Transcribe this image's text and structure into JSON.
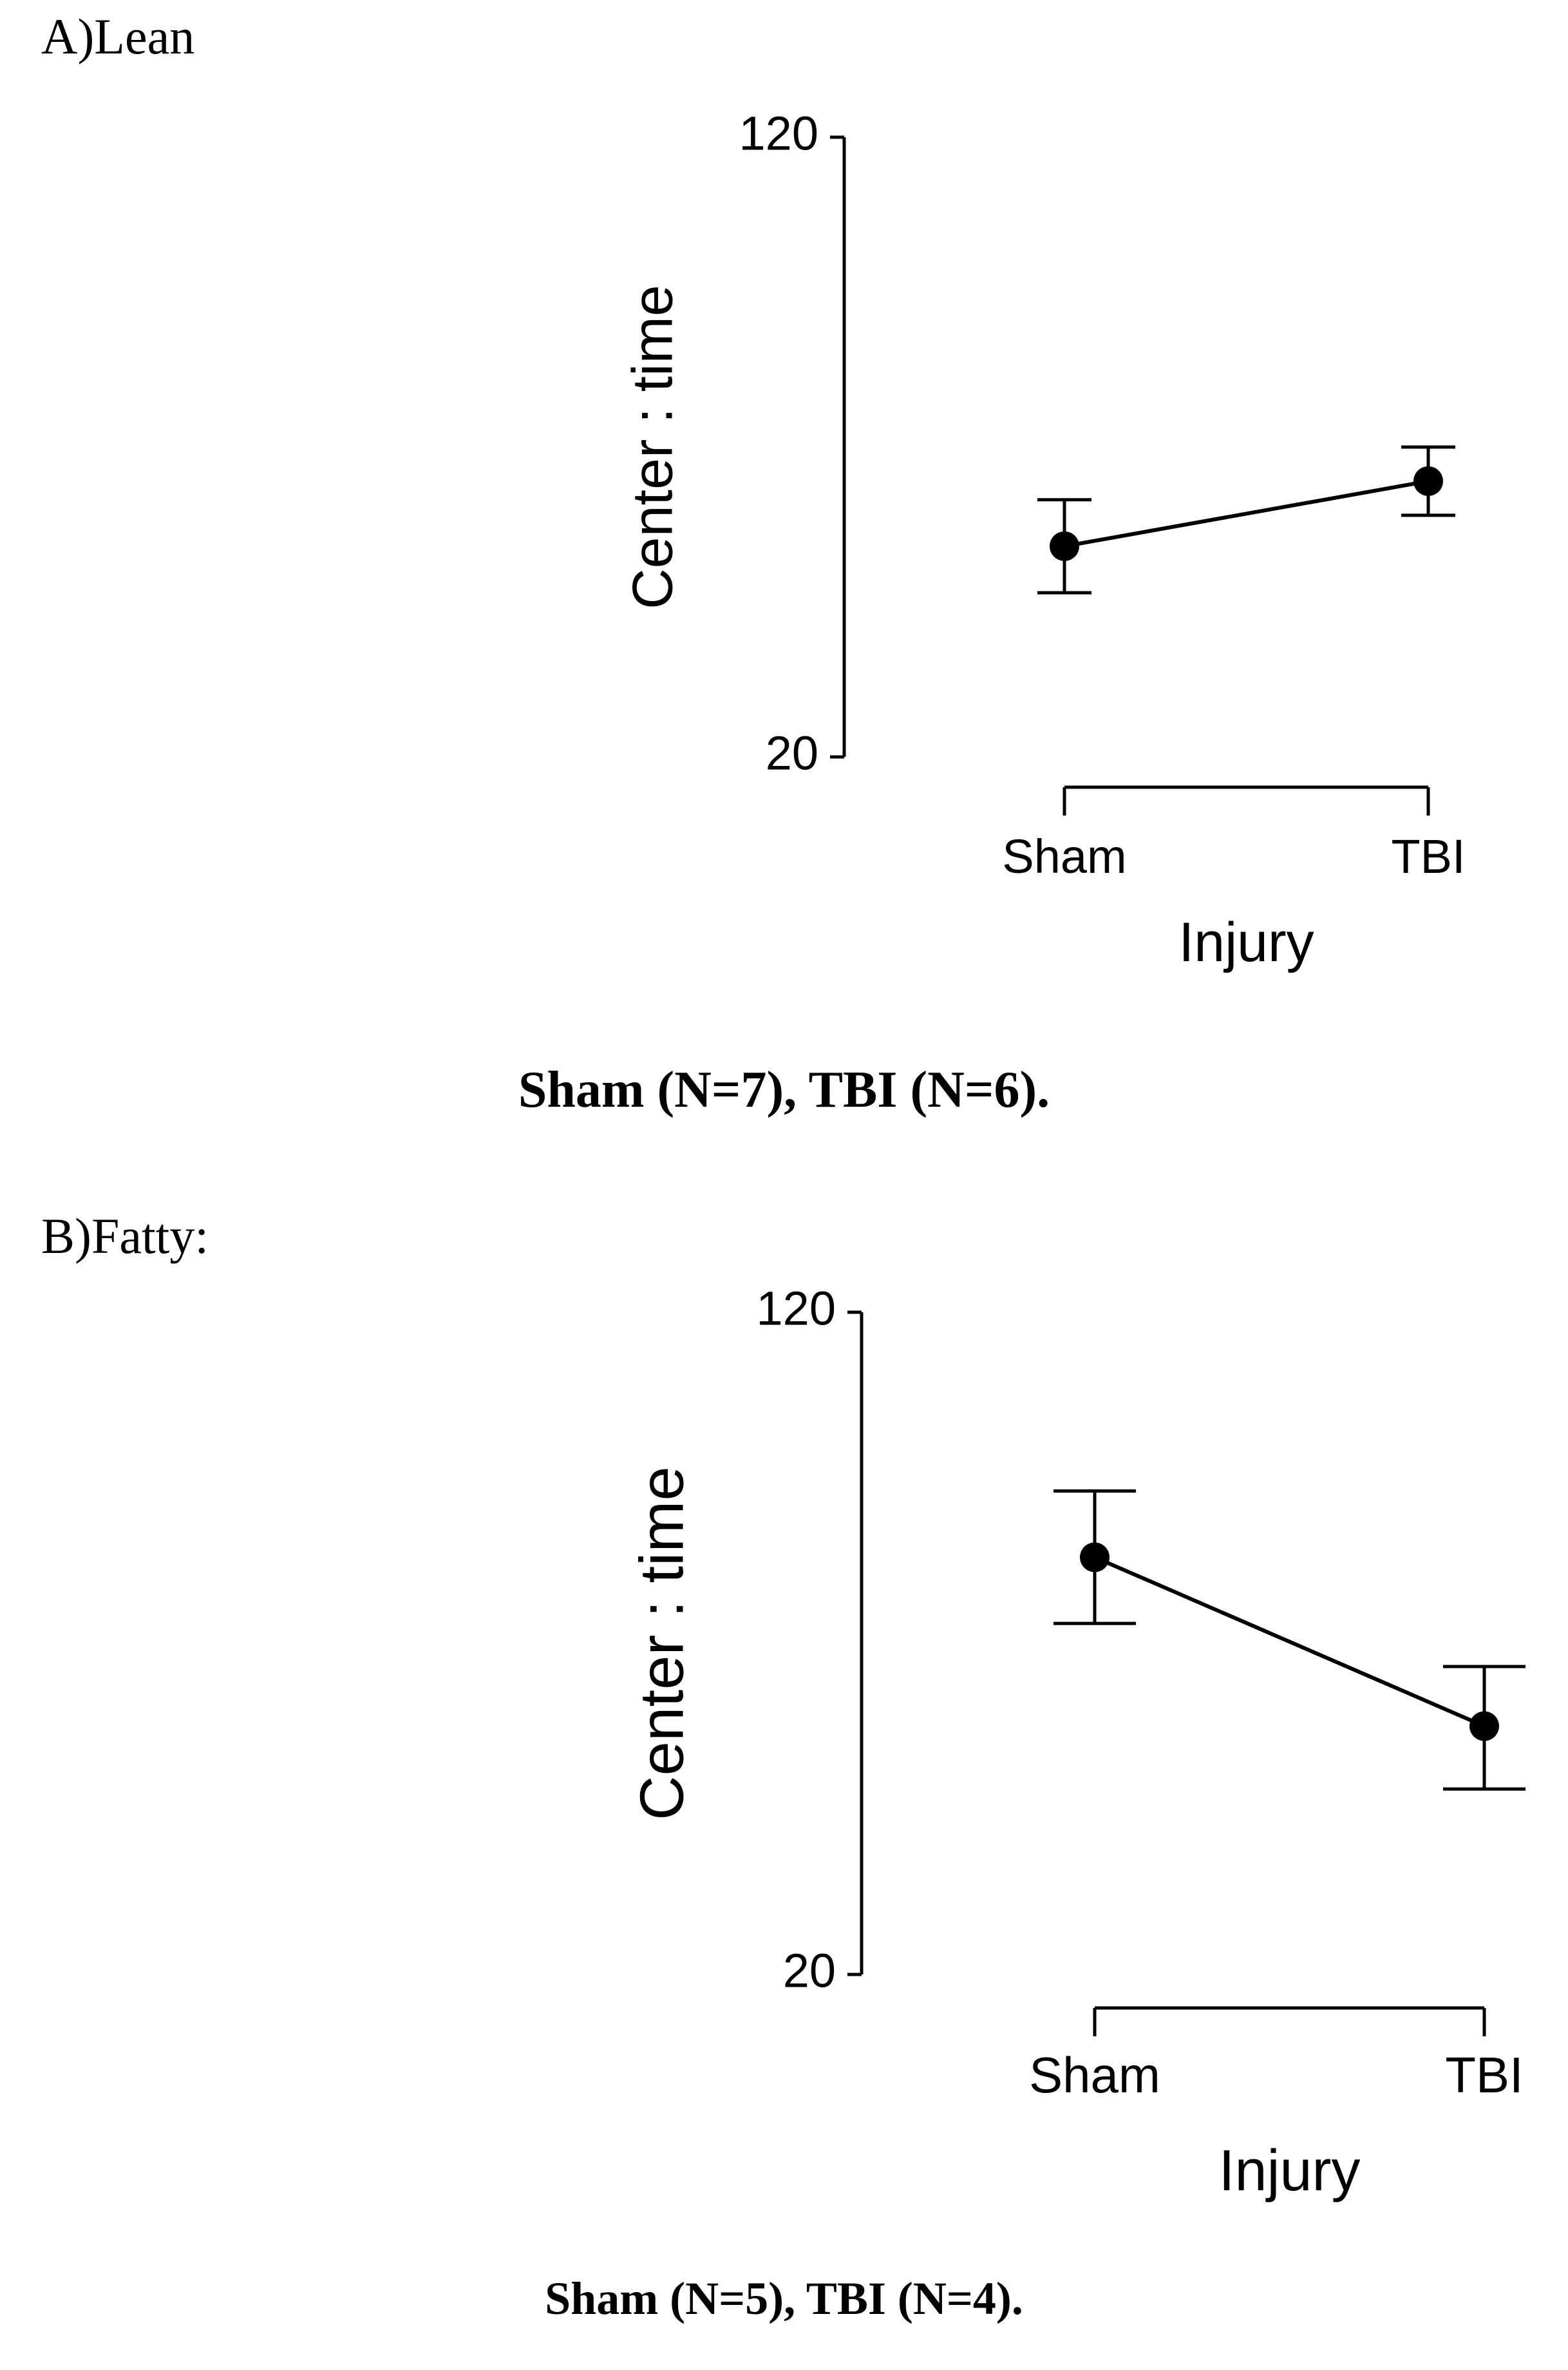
{
  "panels": [
    {
      "label": "A)Lean",
      "caption": "Sham (N=7), TBI (N=6)."
    },
    {
      "label": "B)Fatty:",
      "caption": "Sham (N=5), TBI (N=4)."
    }
  ],
  "chart_data": [
    {
      "type": "line",
      "title": "A)Lean",
      "xlabel": "Injury",
      "ylabel": "Center : time",
      "categories": [
        "Sham",
        "TBI"
      ],
      "values": [
        54,
        64.5
      ],
      "error_low": [
        46.5,
        59
      ],
      "error_high": [
        61.5,
        70
      ],
      "ylim": [
        20,
        120
      ],
      "yticks": [
        20,
        120
      ],
      "grid": false,
      "color": "#000000"
    },
    {
      "type": "line",
      "title": "B)Fatty:",
      "xlabel": "Injury",
      "ylabel": "Center : time",
      "categories": [
        "Sham",
        "TBI"
      ],
      "values": [
        83,
        57.5
      ],
      "error_low": [
        73,
        48
      ],
      "error_high": [
        93,
        66.5
      ],
      "ylim": [
        20,
        120
      ],
      "yticks": [
        20,
        120
      ],
      "grid": false,
      "color": "#000000"
    }
  ]
}
